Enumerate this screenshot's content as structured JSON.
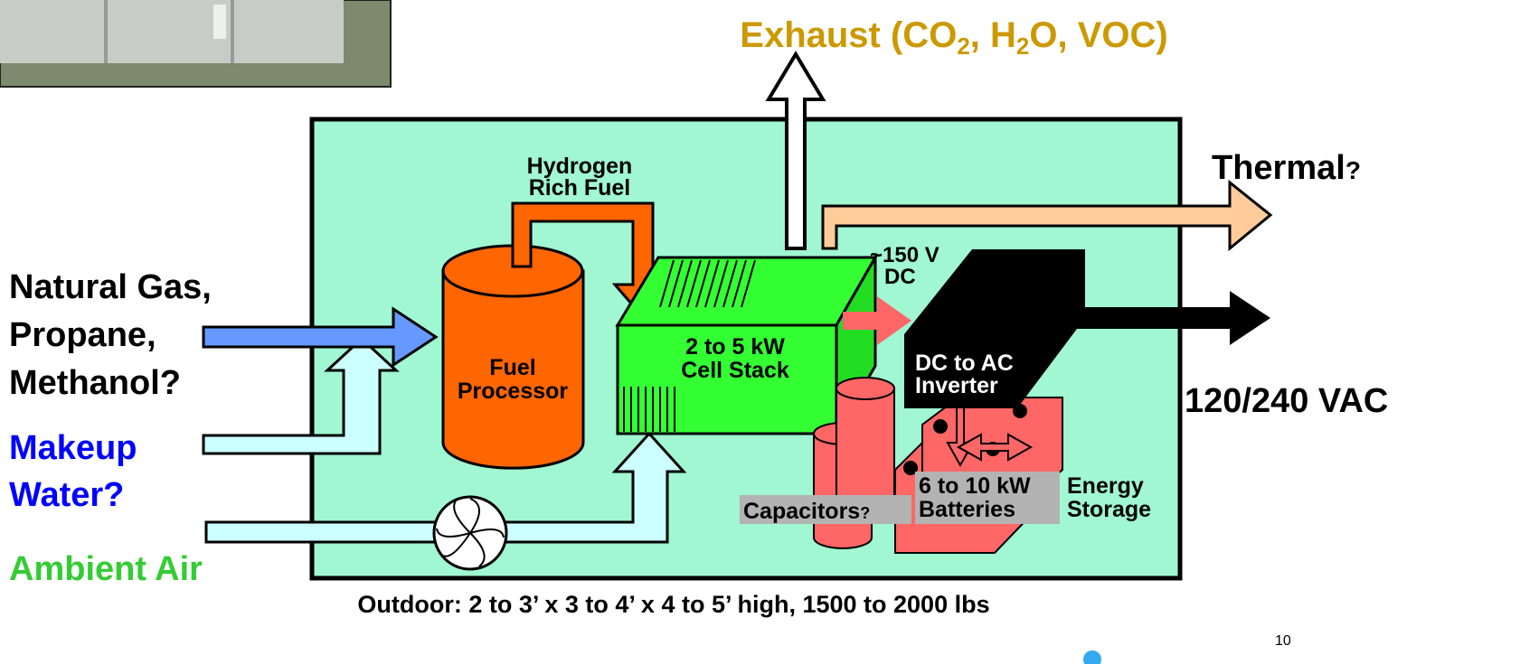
{
  "exhaust": {
    "parts": [
      "Exhaust (CO",
      "2",
      ", H",
      "2",
      "O, VOC)"
    ]
  },
  "hydrogen": {
    "lines": [
      "Hydrogen",
      "Rich Fuel"
    ]
  },
  "thermal": {
    "text": "Thermal",
    "mark": "?"
  },
  "fuel_input": {
    "lines": [
      "Natural Gas,",
      "Propane,",
      "Methanol?"
    ]
  },
  "water_input": {
    "lines": [
      "Makeup",
      "Water?"
    ]
  },
  "air_input": {
    "text": "Ambient Air"
  },
  "voltage": {
    "lines": [
      "~150 V",
      "DC"
    ]
  },
  "cell_stack": {
    "lines": [
      "2 to 5 kW",
      "Cell Stack"
    ]
  },
  "fuel_processor": {
    "lines": [
      "Fuel",
      "Processor"
    ]
  },
  "inverter": {
    "lines": [
      "DC to AC",
      "Inverter"
    ]
  },
  "output": {
    "text": "120/240 VAC"
  },
  "capacitors": {
    "text": "Capacitors",
    "mark": "?"
  },
  "batteries": {
    "lines": [
      "6 to 10 kW",
      "Batteries"
    ]
  },
  "storage": {
    "lines": [
      "Energy",
      "Storage"
    ]
  },
  "caption": {
    "text": "Outdoor:  2 to 3’  x  3 to 4’  x  4 to 5’ high,  1500 to 2000 lbs"
  },
  "page_number": {
    "text": "10"
  }
}
